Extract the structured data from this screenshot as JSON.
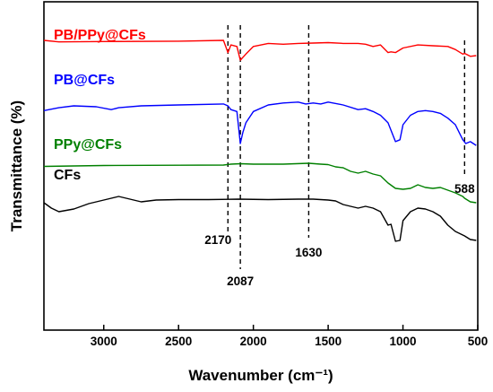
{
  "chart_data": {
    "type": "line",
    "title": "",
    "xlabel": "Wavenumber (cm⁻¹)",
    "ylabel": "Transmittance (%)",
    "xlim": [
      3400,
      500
    ],
    "x_reversed": true,
    "x_ticks": [
      3000,
      2500,
      2000,
      1500,
      1000,
      500
    ],
    "y_ticks_shown": false,
    "grid": false,
    "legend": "none; series labelled directly on plot",
    "series": [
      {
        "name": "PB/PPy@CFs",
        "color": "#ff0000",
        "points": [
          [
            3400,
            88
          ],
          [
            3300,
            86
          ],
          [
            3000,
            86.5
          ],
          [
            2500,
            87
          ],
          [
            2200,
            88
          ],
          [
            2170,
            72
          ],
          [
            2150,
            82
          ],
          [
            2110,
            80
          ],
          [
            2087,
            62
          ],
          [
            2050,
            70
          ],
          [
            2000,
            80
          ],
          [
            1900,
            84
          ],
          [
            1800,
            83
          ],
          [
            1700,
            84
          ],
          [
            1600,
            84.5
          ],
          [
            1500,
            85
          ],
          [
            1400,
            84
          ],
          [
            1300,
            84
          ],
          [
            1250,
            83
          ],
          [
            1200,
            80
          ],
          [
            1150,
            82
          ],
          [
            1100,
            72
          ],
          [
            1080,
            73
          ],
          [
            1050,
            72
          ],
          [
            1000,
            78
          ],
          [
            900,
            82
          ],
          [
            800,
            81
          ],
          [
            700,
            80
          ],
          [
            650,
            76
          ],
          [
            600,
            70
          ],
          [
            588,
            71
          ],
          [
            550,
            67
          ],
          [
            510,
            68
          ]
        ]
      },
      {
        "name": "PB@CFs",
        "color": "#0000ff",
        "points": [
          [
            3400,
            63
          ],
          [
            3300,
            66
          ],
          [
            3200,
            68
          ],
          [
            3050,
            67
          ],
          [
            2950,
            64
          ],
          [
            2900,
            66
          ],
          [
            2750,
            68
          ],
          [
            2500,
            69
          ],
          [
            2200,
            70
          ],
          [
            2170,
            68
          ],
          [
            2150,
            64
          ],
          [
            2110,
            62
          ],
          [
            2087,
            28
          ],
          [
            2070,
            40
          ],
          [
            2050,
            50
          ],
          [
            2000,
            62
          ],
          [
            1900,
            69
          ],
          [
            1800,
            71
          ],
          [
            1700,
            72
          ],
          [
            1650,
            70
          ],
          [
            1600,
            71
          ],
          [
            1550,
            70
          ],
          [
            1500,
            72
          ],
          [
            1400,
            69
          ],
          [
            1300,
            64
          ],
          [
            1250,
            65
          ],
          [
            1200,
            62
          ],
          [
            1150,
            58
          ],
          [
            1100,
            50
          ],
          [
            1050,
            30
          ],
          [
            1020,
            32
          ],
          [
            1000,
            48
          ],
          [
            950,
            58
          ],
          [
            900,
            62
          ],
          [
            850,
            63
          ],
          [
            800,
            62
          ],
          [
            750,
            60
          ],
          [
            700,
            55
          ],
          [
            650,
            48
          ],
          [
            600,
            32
          ],
          [
            580,
            28
          ],
          [
            550,
            30
          ],
          [
            510,
            26
          ]
        ]
      },
      {
        "name": "PPy@CFs",
        "color": "#008000",
        "points": [
          [
            3400,
            27.5
          ],
          [
            3200,
            28
          ],
          [
            3000,
            28.5
          ],
          [
            2500,
            28.8
          ],
          [
            2200,
            29
          ],
          [
            2150,
            30
          ],
          [
            2087,
            30.5
          ],
          [
            2000,
            30
          ],
          [
            1800,
            30
          ],
          [
            1630,
            31
          ],
          [
            1550,
            30
          ],
          [
            1500,
            29.5
          ],
          [
            1450,
            27
          ],
          [
            1400,
            26
          ],
          [
            1350,
            22
          ],
          [
            1300,
            20
          ],
          [
            1250,
            22
          ],
          [
            1200,
            19
          ],
          [
            1150,
            17
          ],
          [
            1100,
            9
          ],
          [
            1050,
            3
          ],
          [
            1000,
            2
          ],
          [
            950,
            3
          ],
          [
            900,
            7
          ],
          [
            850,
            4
          ],
          [
            800,
            3
          ],
          [
            750,
            4
          ],
          [
            700,
            1
          ],
          [
            650,
            -2
          ],
          [
            600,
            -6
          ],
          [
            588,
            -8
          ],
          [
            550,
            -12
          ],
          [
            510,
            -13
          ]
        ]
      },
      {
        "name": "CFs",
        "color": "#000000",
        "points": [
          [
            3400,
            10
          ],
          [
            3350,
            4
          ],
          [
            3300,
            0
          ],
          [
            3200,
            3
          ],
          [
            3100,
            9
          ],
          [
            3000,
            13
          ],
          [
            2900,
            17
          ],
          [
            2850,
            15
          ],
          [
            2750,
            11
          ],
          [
            2650,
            13
          ],
          [
            2500,
            13.5
          ],
          [
            2300,
            13.5
          ],
          [
            2100,
            14
          ],
          [
            1900,
            13.5
          ],
          [
            1700,
            14
          ],
          [
            1600,
            14
          ],
          [
            1550,
            13.5
          ],
          [
            1500,
            13
          ],
          [
            1450,
            12
          ],
          [
            1400,
            8
          ],
          [
            1350,
            6
          ],
          [
            1300,
            4
          ],
          [
            1250,
            6
          ],
          [
            1200,
            4
          ],
          [
            1150,
            0
          ],
          [
            1100,
            -15
          ],
          [
            1080,
            -14
          ],
          [
            1050,
            -33
          ],
          [
            1020,
            -32
          ],
          [
            1000,
            -10
          ],
          [
            950,
            0
          ],
          [
            900,
            4
          ],
          [
            850,
            3
          ],
          [
            800,
            0
          ],
          [
            750,
            -5
          ],
          [
            700,
            -15
          ],
          [
            650,
            -22
          ],
          [
            600,
            -26
          ],
          [
            588,
            -27
          ],
          [
            550,
            -31
          ],
          [
            510,
            -32
          ]
        ]
      }
    ],
    "series_labels": [
      "PB/PPy@CFs",
      "PB@CFs",
      "PPy@CFs",
      "CFs"
    ],
    "annotations": [
      {
        "x": 2170,
        "label": "2170"
      },
      {
        "x": 2087,
        "label": "2087"
      },
      {
        "x": 1630,
        "label": "1630"
      },
      {
        "x": 588,
        "label": "588"
      }
    ]
  }
}
